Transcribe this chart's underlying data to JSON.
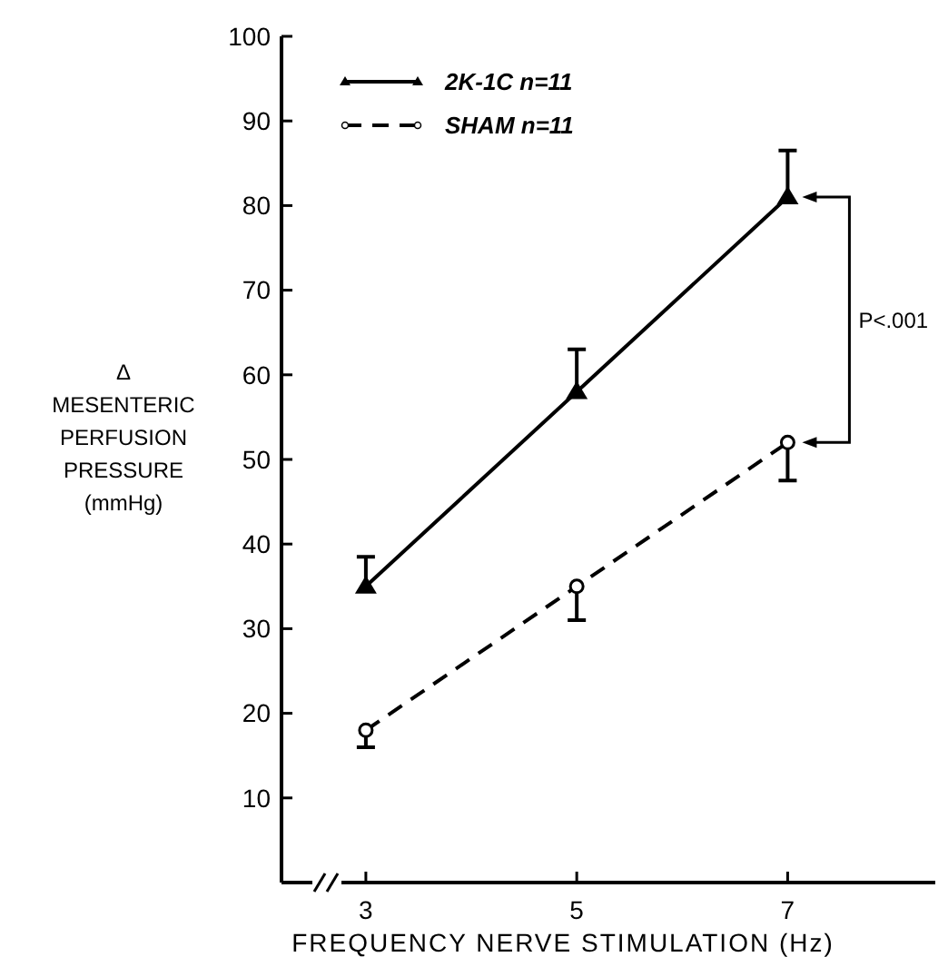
{
  "chart_data": {
    "type": "line",
    "xlabel": "FREQUENCY NERVE STIMULATION (Hz)",
    "ylabel": "Δ\nMESENTERIC\nPERFUSION\nPRESSURE\n(mmHg)",
    "x": [
      3,
      5,
      7
    ],
    "xlim": [
      2.2,
      8.4
    ],
    "xticks": [
      3,
      5,
      7
    ],
    "ylim": [
      0,
      100
    ],
    "yticks": [
      10,
      20,
      30,
      40,
      50,
      60,
      70,
      80,
      90,
      100
    ],
    "legend": "top left",
    "grid": false,
    "series": [
      {
        "name": "2K-1C n=11",
        "color": "#000000",
        "values": [
          35,
          58,
          81
        ],
        "errors": [
          [
            35,
            38.5
          ],
          [
            58,
            63
          ],
          [
            81,
            86.5
          ]
        ],
        "marker": "triangle",
        "line_style": "solid"
      },
      {
        "name": "SHAM n=11",
        "color": "#000000",
        "values": [
          18,
          35,
          52
        ],
        "errors": [
          [
            16,
            18
          ],
          [
            31,
            35
          ],
          [
            47.5,
            52
          ]
        ],
        "marker": "circle",
        "line_style": "dashed"
      }
    ],
    "annotations": [
      "P<.001"
    ]
  }
}
